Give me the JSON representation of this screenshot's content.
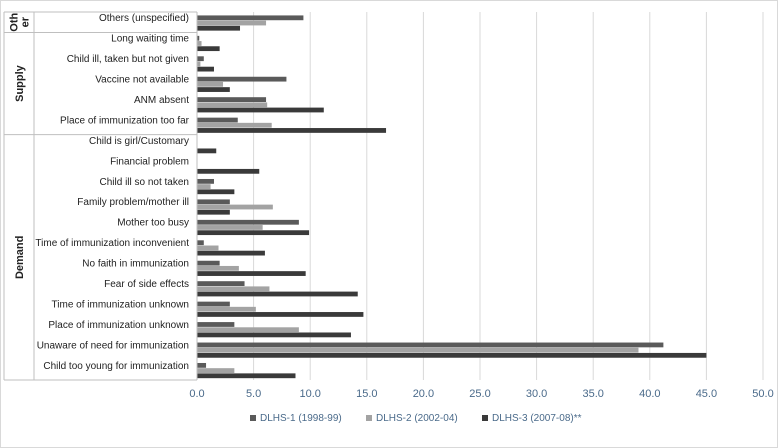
{
  "chart_data": {
    "type": "bar",
    "orientation": "horizontal",
    "title": "",
    "xlabel": "",
    "ylabel": "",
    "xlim": [
      0,
      50
    ],
    "x_ticks": [
      "0.0",
      "5.0",
      "10.0",
      "15.0",
      "20.0",
      "25.0",
      "30.0",
      "35.0",
      "40.0",
      "45.0",
      "50.0"
    ],
    "grid": "vertical",
    "legend_position": "bottom",
    "groups": [
      {
        "label": "Oth er",
        "categories": [
          "Others (unspecified)"
        ]
      },
      {
        "label": "Supply",
        "categories": [
          "Long waiting time",
          "Child ill, taken but not given",
          "Vaccine not available",
          "ANM absent",
          "Place of immunization too far"
        ]
      },
      {
        "label": "Demand",
        "categories": [
          "Child is girl/Customary",
          "Financial problem",
          "Child ill so not taken",
          "Family problem/mother ill",
          "Mother too busy",
          "Time of immunization inconvenient",
          "No faith in immunization",
          "Fear of side effects",
          "Time of immunization unknown",
          "Place of immunization unknown",
          "Unaware of need for immunization",
          "Child too young for immunization"
        ]
      }
    ],
    "categories": [
      "Others (unspecified)",
      "Long waiting time",
      "Child ill, taken but not given",
      "Vaccine not available",
      "ANM absent",
      "Place of immunization too far",
      "Child is girl/Customary",
      "Financial problem",
      "Child ill so not taken",
      "Family problem/mother ill",
      "Mother too busy",
      "Time of immunization inconvenient",
      "No faith in immunization",
      "Fear of side effects",
      "Time of immunization unknown",
      "Place of immunization unknown",
      "Unaware of need for immunization",
      "Child too young for immunization"
    ],
    "series": [
      {
        "name": "DLHS-1 (1998-99)",
        "color": "#5a5a5a",
        "values": [
          9.4,
          0.2,
          0.6,
          7.9,
          6.1,
          3.6,
          0.0,
          0.0,
          1.5,
          2.9,
          9.0,
          0.6,
          2.0,
          4.2,
          2.9,
          3.3,
          41.2,
          0.8
        ]
      },
      {
        "name": "DLHS-2 (2002-04)",
        "color": "#a3a3a3",
        "values": [
          6.1,
          0.4,
          0.3,
          2.3,
          6.2,
          6.6,
          0.0,
          0.0,
          1.2,
          6.7,
          5.8,
          1.9,
          3.7,
          6.4,
          5.2,
          9.0,
          39.0,
          3.3
        ]
      },
      {
        "name": "DLHS-3 (2007-08)**",
        "color": "#3a3a3a",
        "values": [
          3.8,
          2.0,
          1.5,
          2.9,
          11.2,
          16.7,
          1.7,
          5.5,
          3.3,
          2.9,
          9.9,
          6.0,
          9.6,
          14.2,
          14.7,
          13.6,
          45.0,
          8.7
        ]
      }
    ]
  }
}
